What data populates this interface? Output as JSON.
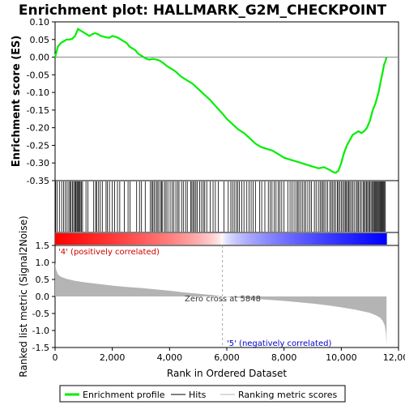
{
  "chart_data": {
    "type": "line",
    "title": "Enrichment plot: HALLMARK_G2M_CHECKPOINT",
    "xlabel": "Rank in Ordered Dataset",
    "top_panel": {
      "ylabel": "Enrichment score (ES)",
      "ylim": [
        -0.35,
        0.1
      ],
      "yticks": [
        "0.10",
        "0.05",
        "0.00",
        "-0.05",
        "-0.10",
        "-0.15",
        "-0.20",
        "-0.25",
        "-0.30",
        "-0.35"
      ],
      "ytick_values": [
        0.1,
        0.05,
        0.0,
        -0.05,
        -0.1,
        -0.15,
        -0.2,
        -0.25,
        -0.3,
        -0.35
      ],
      "series": [
        {
          "name": "Enrichment profile",
          "color": "#00ee00",
          "x": [
            0,
            100,
            200,
            300,
            400,
            500,
            600,
            700,
            800,
            900,
            1000,
            1100,
            1200,
            1300,
            1400,
            1500,
            1600,
            1700,
            1800,
            1900,
            2000,
            2100,
            2200,
            2300,
            2400,
            2500,
            2600,
            2700,
            2800,
            2900,
            3000,
            3100,
            3200,
            3300,
            3400,
            3500,
            3600,
            3700,
            3800,
            3900,
            4000,
            4200,
            4400,
            4600,
            4800,
            5000,
            5200,
            5400,
            5600,
            5848,
            6000,
            6200,
            6400,
            6600,
            6800,
            7000,
            7200,
            7400,
            7600,
            7800,
            8000,
            8200,
            8400,
            8600,
            8800,
            9000,
            9200,
            9400,
            9600,
            9700,
            9800,
            9900,
            10000,
            10100,
            10200,
            10300,
            10400,
            10500,
            10600,
            10700,
            10800,
            10900,
            11000,
            11100,
            11200,
            11300,
            11400,
            11450,
            11500,
            11550,
            11580
          ],
          "y": [
            0.0,
            0.03,
            0.04,
            0.045,
            0.05,
            0.05,
            0.052,
            0.06,
            0.08,
            0.075,
            0.07,
            0.065,
            0.06,
            0.065,
            0.068,
            0.065,
            0.06,
            0.058,
            0.056,
            0.055,
            0.06,
            0.058,
            0.055,
            0.05,
            0.045,
            0.04,
            0.03,
            0.025,
            0.02,
            0.01,
            0.005,
            0.0,
            -0.005,
            -0.007,
            -0.005,
            -0.006,
            -0.008,
            -0.012,
            -0.018,
            -0.025,
            -0.03,
            -0.04,
            -0.055,
            -0.065,
            -0.075,
            -0.09,
            -0.105,
            -0.12,
            -0.138,
            -0.16,
            -0.175,
            -0.19,
            -0.205,
            -0.215,
            -0.23,
            -0.245,
            -0.255,
            -0.26,
            -0.265,
            -0.275,
            -0.285,
            -0.29,
            -0.295,
            -0.3,
            -0.305,
            -0.31,
            -0.315,
            -0.312,
            -0.32,
            -0.325,
            -0.328,
            -0.322,
            -0.3,
            -0.27,
            -0.25,
            -0.235,
            -0.22,
            -0.215,
            -0.21,
            -0.215,
            -0.21,
            -0.2,
            -0.18,
            -0.15,
            -0.13,
            -0.1,
            -0.06,
            -0.04,
            -0.02,
            -0.01,
            0.0
          ]
        }
      ]
    },
    "bottom_panel": {
      "ylabel": "Ranked list metric (Signal2Noise)",
      "ylim": [
        -1.5,
        1.5
      ],
      "yticks": [
        "1.5",
        "1.0",
        "0.5",
        "0.0",
        "-0.5",
        "-1.0",
        "-1.5"
      ],
      "ytick_values": [
        1.5,
        1.0,
        0.5,
        0.0,
        -0.5,
        -1.0,
        -1.5
      ],
      "fill_color": "#b4b4b4",
      "x": [
        0,
        30,
        100,
        200,
        400,
        700,
        1000,
        1500,
        2000,
        2500,
        3000,
        3500,
        4000,
        4500,
        5000,
        5500,
        5848,
        6000,
        6500,
        7000,
        7500,
        8000,
        8500,
        9000,
        9500,
        10000,
        10500,
        11000,
        11200,
        11350,
        11450,
        11520,
        11560,
        11580
      ],
      "y": [
        1.0,
        0.8,
        0.65,
        0.58,
        0.52,
        0.46,
        0.42,
        0.37,
        0.32,
        0.28,
        0.25,
        0.21,
        0.17,
        0.12,
        0.08,
        0.04,
        0.0,
        -0.01,
        -0.04,
        -0.07,
        -0.1,
        -0.13,
        -0.17,
        -0.21,
        -0.26,
        -0.32,
        -0.39,
        -0.48,
        -0.55,
        -0.62,
        -0.72,
        -0.85,
        -1.1,
        -1.45
      ]
    },
    "xlim": [
      0,
      12000
    ],
    "xticks": [
      "0",
      "2,000",
      "4,000",
      "6,000",
      "8,000",
      "10,000",
      "12,000"
    ],
    "xtick_values": [
      0,
      2000,
      4000,
      6000,
      8000,
      10000,
      12000
    ],
    "hits": [
      20,
      70,
      150,
      230,
      300,
      360,
      420,
      480,
      520,
      560,
      610,
      650,
      690,
      720,
      760,
      790,
      820,
      850,
      880,
      920,
      960,
      1080,
      1150,
      1350,
      1420,
      1450,
      1520,
      1580,
      1650,
      1780,
      1830,
      1900,
      2000,
      2080,
      2180,
      2260,
      2420,
      2550,
      2620,
      2850,
      2950,
      3020,
      3150,
      3330,
      3380,
      3420,
      3470,
      3530,
      3570,
      3620,
      3680,
      3720,
      3760,
      3830,
      3880,
      3940,
      4020,
      4090,
      4150,
      4220,
      4280,
      4330,
      4420,
      4480,
      4560,
      4620,
      4740,
      4780,
      4830,
      4870,
      4920,
      4970,
      5050,
      5120,
      5180,
      5230,
      5300,
      5420,
      5520,
      5600,
      5700,
      5900,
      6050,
      6140,
      6200,
      6260,
      6330,
      6380,
      6440,
      6520,
      6600,
      6700,
      6780,
      6850,
      6920,
      7000,
      7150,
      7220,
      7330,
      7450,
      7520,
      7580,
      7660,
      7720,
      7800,
      7850,
      7920,
      8000,
      8130,
      8210,
      8280,
      8350,
      8420,
      8480,
      8520,
      8580,
      8640,
      8700,
      8760,
      8830,
      8900,
      8960,
      9060,
      9120,
      9200,
      9260,
      9310,
      9360,
      9400,
      9460,
      9520,
      9600,
      9650,
      9700,
      9750,
      9800,
      9860,
      9900,
      9950,
      10000,
      10050,
      10100,
      10140,
      10180,
      10220,
      10260,
      10300,
      10350,
      10400,
      10450,
      10520,
      10560,
      10600,
      10650,
      10700,
      10760,
      10800,
      10840,
      10880,
      10920,
      10960,
      11000,
      11040,
      11080,
      11120,
      11150,
      11180,
      11210,
      11240,
      11270,
      11300,
      11330,
      11360,
      11390,
      11420,
      11450,
      11480,
      11510,
      11540
    ],
    "annotations": {
      "positive": "'4' (positively correlated)",
      "negative": "'5' (negatively correlated)",
      "zero_cross": "Zero cross at 5848",
      "zero_cross_x": 5848
    },
    "legend": {
      "placement": "bottom",
      "items": [
        {
          "label": "Enrichment profile",
          "color": "#00ee00"
        },
        {
          "label": "Hits",
          "color": "#000000"
        },
        {
          "label": "Ranking metric scores",
          "color": "#b4b4b4"
        }
      ]
    },
    "colors": {
      "positive_band": "#ff0000",
      "neutral_band": "#ffffff",
      "negative_band": "#0000ff"
    }
  }
}
